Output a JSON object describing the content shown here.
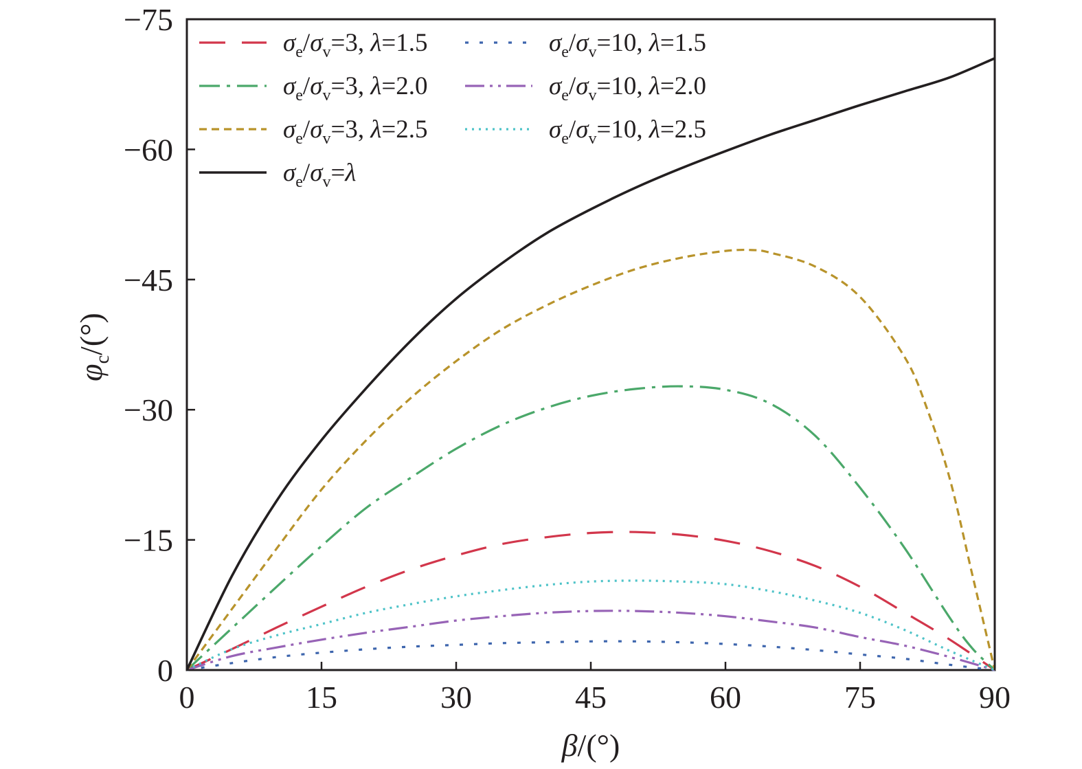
{
  "chart_data": {
    "type": "line",
    "x_ticks": [
      "0",
      "15",
      "30",
      "45",
      "60",
      "75",
      "90"
    ],
    "y_ticks": [
      "0",
      "−15",
      "−30",
      "−45",
      "−60",
      "−75"
    ],
    "xlim": [
      0,
      90
    ],
    "ylim": [
      0,
      -75
    ],
    "xlabel": {
      "symbol": "β",
      "unit": "/(°)"
    },
    "ylabel": {
      "symbol": "φ",
      "sub": "c",
      "unit": "/(°)"
    },
    "legend_placement": "top-left",
    "series": [
      {
        "ratio": "3",
        "lam": "1.5",
        "color": "#d2364b",
        "dash": "38,24",
        "x": [
          0,
          5,
          10,
          15,
          20,
          25,
          30,
          35,
          40,
          45,
          50,
          55,
          60,
          65,
          70,
          75,
          80,
          85,
          90
        ],
        "y": [
          0,
          -2.4,
          -4.9,
          -7.3,
          -9.6,
          -11.6,
          -13.2,
          -14.5,
          -15.3,
          -15.8,
          -15.9,
          -15.6,
          -14.9,
          -13.7,
          -12.0,
          -9.6,
          -6.6,
          -3.5,
          0
        ]
      },
      {
        "ratio": "10",
        "lam": "1.5",
        "color": "#3d65ad",
        "dash": "5,16",
        "x": [
          0,
          5,
          10,
          15,
          20,
          25,
          30,
          35,
          40,
          45,
          50,
          55,
          60,
          65,
          70,
          75,
          80,
          85,
          90
        ],
        "y": [
          0,
          -0.8,
          -1.5,
          -2.0,
          -2.4,
          -2.7,
          -2.9,
          -3.1,
          -3.2,
          -3.3,
          -3.3,
          -3.2,
          -3.0,
          -2.7,
          -2.3,
          -1.8,
          -1.3,
          -0.6,
          0
        ]
      },
      {
        "ratio": "3",
        "lam": "2.0",
        "color": "#4ba86a",
        "dash": "30,10,5,10",
        "x": [
          0,
          5,
          10,
          15,
          20,
          25,
          30,
          35,
          40,
          45,
          50,
          55,
          60,
          65,
          70,
          75,
          80,
          85,
          87.5,
          90
        ],
        "y": [
          0,
          -4.8,
          -9.6,
          -14.3,
          -18.7,
          -22.2,
          -25.5,
          -28.2,
          -30.2,
          -31.6,
          -32.4,
          -32.7,
          -32.3,
          -30.7,
          -27.0,
          -21.0,
          -14.0,
          -6.0,
          -2.5,
          0
        ]
      },
      {
        "ratio": "10",
        "lam": "2.0",
        "color": "#9763b6",
        "dash": "28,8,4,8,4,8",
        "x": [
          0,
          5,
          10,
          15,
          20,
          25,
          30,
          35,
          40,
          45,
          50,
          55,
          60,
          65,
          70,
          75,
          80,
          85,
          90
        ],
        "y": [
          0,
          -1.6,
          -2.6,
          -3.5,
          -4.3,
          -5.0,
          -5.7,
          -6.2,
          -6.6,
          -6.8,
          -6.8,
          -6.6,
          -6.2,
          -5.6,
          -4.9,
          -3.8,
          -2.8,
          -1.5,
          0
        ]
      },
      {
        "ratio": "3",
        "lam": "2.5",
        "color": "#b8932b",
        "dash": "11,7",
        "x": [
          0,
          5,
          10,
          15,
          20,
          25,
          30,
          35,
          40,
          45,
          50,
          55,
          60,
          63,
          65,
          70,
          75,
          80,
          82.5,
          85,
          87.5,
          90
        ],
        "y": [
          0,
          -7.0,
          -14.0,
          -20.8,
          -26.5,
          -31.4,
          -35.6,
          -39.2,
          -42.0,
          -44.3,
          -46.2,
          -47.5,
          -48.3,
          -48.4,
          -48.1,
          -46.5,
          -43.0,
          -36.0,
          -30.0,
          -22.0,
          -11.0,
          0
        ]
      },
      {
        "ratio": "10",
        "lam": "2.5",
        "color": "#4ec3c8",
        "dash": "3,7",
        "x": [
          0,
          5,
          10,
          15,
          20,
          25,
          30,
          35,
          40,
          45,
          50,
          55,
          60,
          65,
          70,
          75,
          80,
          85,
          90
        ],
        "y": [
          0,
          -2.4,
          -4.0,
          -5.3,
          -6.6,
          -7.6,
          -8.5,
          -9.2,
          -9.8,
          -10.2,
          -10.3,
          -10.2,
          -9.9,
          -9.1,
          -8.0,
          -6.6,
          -4.6,
          -2.2,
          0
        ]
      },
      {
        "ratio": "λ",
        "lam": "",
        "color": "#231f20",
        "dash": "",
        "x": [
          0,
          5,
          10,
          15,
          20,
          25,
          30,
          35,
          40,
          45,
          50,
          55,
          60,
          65,
          70,
          75,
          80,
          85,
          90
        ],
        "y": [
          0,
          -10.8,
          -19.5,
          -26.5,
          -32.5,
          -38.0,
          -42.8,
          -46.8,
          -50.3,
          -53.1,
          -55.6,
          -57.8,
          -59.8,
          -61.7,
          -63.4,
          -65.1,
          -66.7,
          -68.3,
          -70.5
        ]
      }
    ]
  }
}
